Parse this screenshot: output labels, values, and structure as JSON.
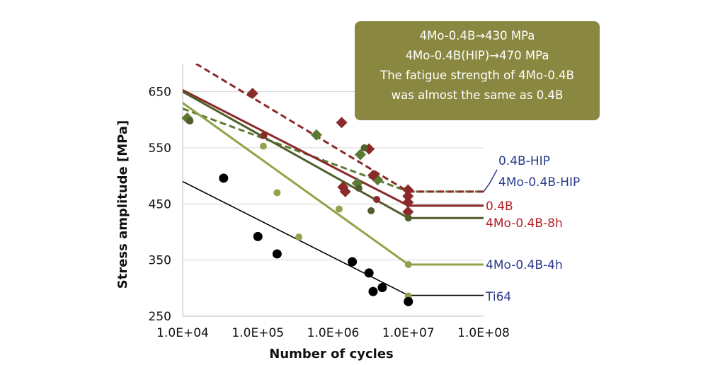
{
  "chart_data": {
    "type": "scatter",
    "xlabel": "Number of cycles",
    "ylabel": "Stress amplitude [MPa]",
    "xscale": "log",
    "xlim": [
      10000,
      100000000
    ],
    "ylim": [
      250,
      700
    ],
    "x_ticks": [
      "1.0E+04",
      "1.0E+05",
      "1.0E+06",
      "1.0E+07",
      "1.0E+08"
    ],
    "y_ticks": [
      "250",
      "350",
      "450",
      "550",
      "650"
    ],
    "grid": "horizontal",
    "annotation": [
      "4Mo-0.4B→430 MPa",
      "4Mo-0.4B(HIP)→470 MPa",
      "The fatigue strength of 4Mo-0.4B",
      "was almost the same as 0.4B"
    ],
    "series": [
      {
        "name": "0.4B-HIP",
        "label_color": "#2b3a8c",
        "color": "#5d7a32",
        "marker": "diamond",
        "dash": true,
        "points": [
          [
            11500,
            603
          ],
          [
            600000,
            573
          ],
          [
            2100000,
            487
          ],
          [
            2300000,
            538
          ],
          [
            3900000,
            493
          ]
        ],
        "fit": [
          [
            10000,
            620
          ],
          [
            10000000,
            472
          ],
          [
            100000000,
            472
          ]
        ]
      },
      {
        "name": "4Mo-0.4B-HIP",
        "label_color": "#2b3a8c",
        "color": "#8b2a2a",
        "marker": "diamond",
        "dash": true,
        "points": [
          [
            85000,
            647
          ],
          [
            1300000,
            595
          ],
          [
            1350000,
            480
          ],
          [
            1450000,
            472
          ],
          [
            3000000,
            548
          ],
          [
            3400000,
            501
          ],
          [
            9900000,
            475
          ],
          [
            9900000,
            464
          ],
          [
            9900000,
            453
          ],
          [
            9900000,
            436
          ]
        ],
        "fit": [
          [
            15000,
            700
          ],
          [
            10000000,
            472
          ],
          [
            100000000,
            472
          ]
        ]
      },
      {
        "name": "0.4B",
        "label_color": "#b52025",
        "color": "#8b2a2a",
        "marker": "circle",
        "dash": false,
        "points": [
          [
            120000,
            572
          ],
          [
            3800000,
            458
          ]
        ],
        "fit": [
          [
            10000,
            653
          ],
          [
            10000000,
            447
          ],
          [
            100000000,
            447
          ]
        ]
      },
      {
        "name": "4Mo-0.4B-8h",
        "label_color": "#b52025",
        "color": "#4f5e2a",
        "marker": "circle",
        "dash": false,
        "points": [
          [
            12500,
            598
          ],
          [
            2600000,
            550
          ],
          [
            2200000,
            478
          ],
          [
            3200000,
            438
          ],
          [
            10000000,
            425
          ]
        ],
        "fit": [
          [
            10000,
            650
          ],
          [
            10000000,
            425
          ],
          [
            100000000,
            425
          ]
        ]
      },
      {
        "name": "4Mo-0.4B-4h",
        "label_color": "#2b3a8c",
        "color": "#8fa44a",
        "marker": "circle",
        "dash": false,
        "points": [
          [
            118000,
            553
          ],
          [
            180000,
            470
          ],
          [
            350000,
            391
          ],
          [
            1200000,
            441
          ],
          [
            10000000,
            342
          ],
          [
            10000000,
            286
          ],
          [
            10000000,
            282
          ]
        ],
        "fit": [
          [
            10000,
            630
          ],
          [
            10000000,
            342
          ],
          [
            100000000,
            342
          ]
        ]
      },
      {
        "name": "Ti64",
        "label_color": "#2b3a8c",
        "color": "#000000",
        "marker": "circle",
        "dash": false,
        "points": [
          [
            35000,
            496
          ],
          [
            100000,
            392
          ],
          [
            180000,
            361
          ],
          [
            1800000,
            347
          ],
          [
            3000000,
            327
          ],
          [
            3400000,
            294
          ],
          [
            4500000,
            301
          ],
          [
            10000000,
            276
          ]
        ],
        "fit": [
          [
            10000,
            490
          ],
          [
            10000000,
            287
          ],
          [
            100000000,
            287
          ]
        ]
      }
    ]
  }
}
